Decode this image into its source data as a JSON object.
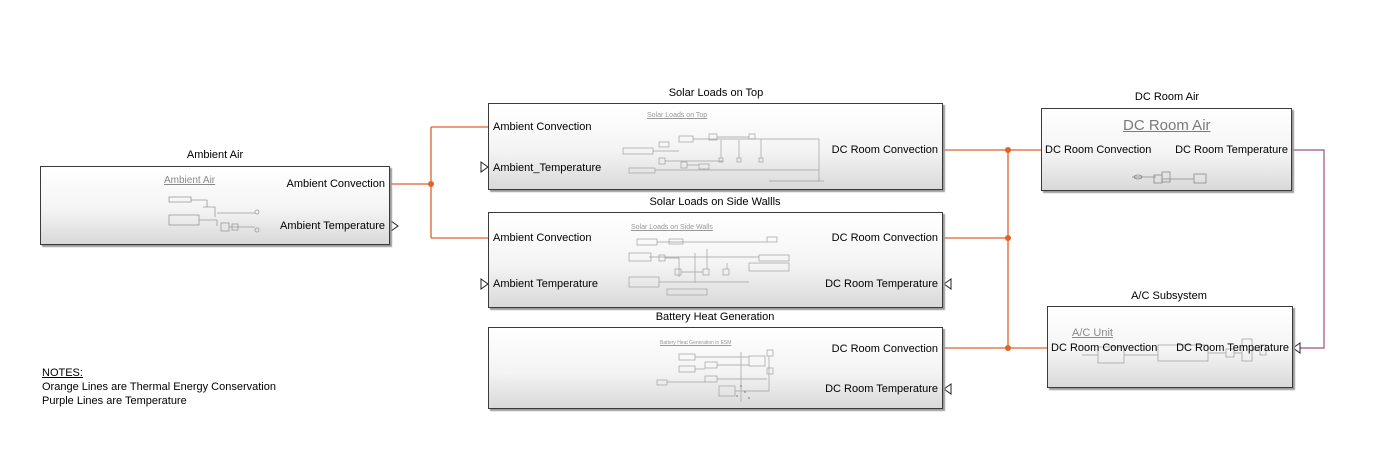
{
  "blocks": {
    "ambient_air": {
      "title": "Ambient Air",
      "inner_title": "Ambient Air",
      "ports": {
        "ambient_convection": "Ambient Convection",
        "ambient_temperature": "Ambient Temperature"
      }
    },
    "solar_top": {
      "title": "Solar Loads on Top",
      "inner_title": "Solar Loads on Top",
      "ports": {
        "ambient_convection": "Ambient Convection",
        "ambient_temperature": "Ambient_Temperature",
        "dc_room_convection": "DC Room Convection"
      }
    },
    "solar_side": {
      "title": "Solar Loads on Side Wallls",
      "inner_title": "Solar Loads on Side Walls",
      "ports": {
        "ambient_convection": "Ambient Convection",
        "ambient_temperature": "Ambient Temperature",
        "dc_room_convection": "DC Room Convection",
        "dc_room_temperature": "DC Room Temperature"
      }
    },
    "battery": {
      "title": "Battery Heat Generation",
      "inner_title": "Battery Heat Generation in ESM",
      "ports": {
        "dc_room_convection": "DC Room Convection",
        "dc_room_temperature": "DC Room Temperature"
      }
    },
    "dc_room_air": {
      "title": "DC Room Air",
      "inner_title": "DC Room Air",
      "ports": {
        "dc_room_convection": "DC Room Convection",
        "dc_room_temperature": "DC  Room Temperature"
      }
    },
    "ac_subsystem": {
      "title": "A/C Subsystem",
      "inner_title": "A/C Unit",
      "ports": {
        "dc_room_convection": "DC Room Convection",
        "dc_room_temperature": "DC Room Temperature"
      }
    }
  },
  "notes": {
    "heading": "NOTES:",
    "line1": "Orange Lines are Thermal Energy Conservation",
    "line2": "Purple Lines are Temperature"
  },
  "colors": {
    "thermal_line": "#e0622a",
    "temperature_line": "#a0527a",
    "block_border": "#3a3a3a"
  }
}
